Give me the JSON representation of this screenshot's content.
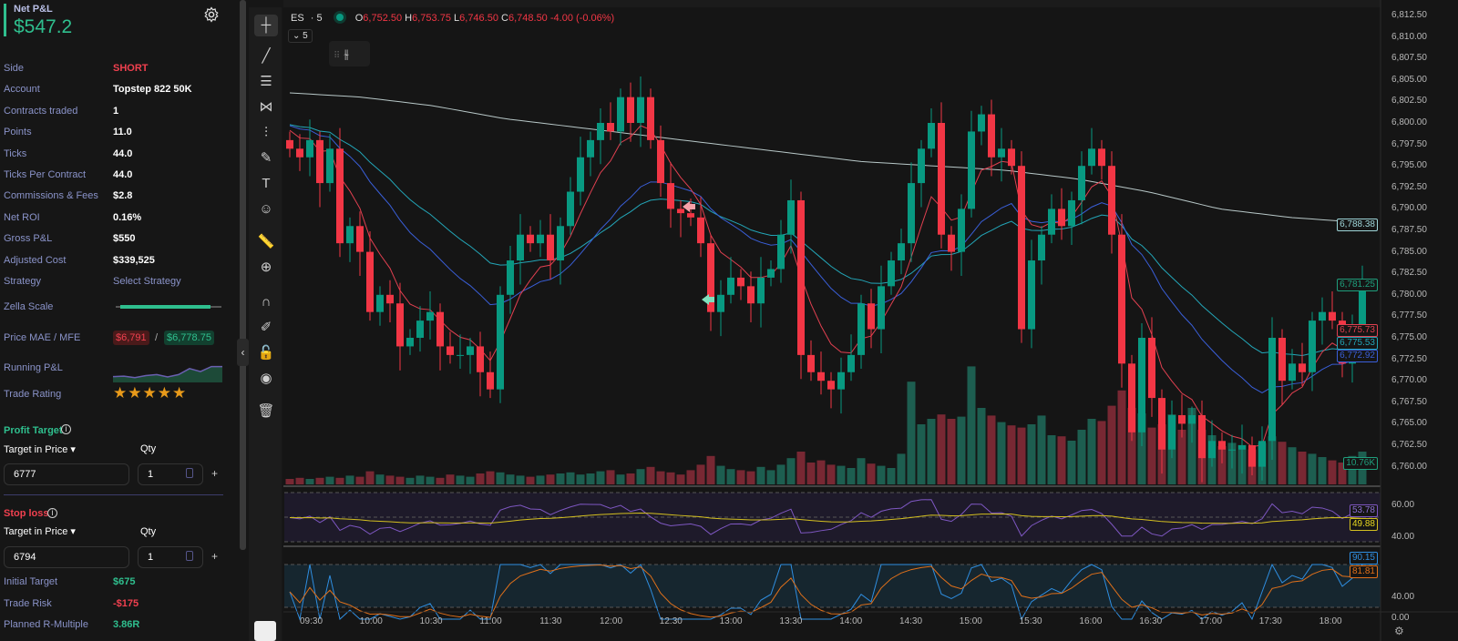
{
  "summary": {
    "net_pnl_label": "Net P&L",
    "net_pnl": "$547.2",
    "rows": [
      {
        "label": "Side",
        "value": "SHORT"
      },
      {
        "label": "Account",
        "value": "Topstep 822 50K"
      },
      {
        "label": "Contracts traded",
        "value": "1"
      },
      {
        "label": "Points",
        "value": "11.0"
      },
      {
        "label": "Ticks",
        "value": "44.0"
      },
      {
        "label": "Ticks Per Contract",
        "value": "44.0"
      },
      {
        "label": "Commissions & Fees",
        "value": "$2.8"
      },
      {
        "label": "Net ROI",
        "value": "0.16%"
      },
      {
        "label": "Gross P&L",
        "value": "$550"
      },
      {
        "label": "Adjusted Cost",
        "value": "$339,525"
      },
      {
        "label": "Strategy",
        "value": "Select Strategy"
      }
    ],
    "zella_label": "Zella Scale",
    "zella_fraction": 0.92,
    "mae_label": "Price MAE / MFE",
    "mae": "$6,791",
    "sep": "/",
    "mfe": "$6,778.75",
    "running_label": "Running P&L",
    "running_values": [
      2,
      2.2,
      1.5,
      2.5,
      3,
      1.8,
      3,
      6,
      4.5,
      7,
      7
    ],
    "rating_label": "Trade Rating",
    "rating": 4.5
  },
  "profit_target": {
    "title": "Profit Target",
    "mode": "Target in Price",
    "qty_label": "Qty",
    "price": "6777",
    "qty": "1",
    "plus": "+"
  },
  "stop_loss": {
    "title": "Stop loss",
    "mode": "Target in Price",
    "qty_label": "Qty",
    "price": "6794",
    "qty": "1",
    "plus": "+"
  },
  "results": [
    {
      "label": "Initial Target",
      "value": "$675",
      "color": "#2fbf8e"
    },
    {
      "label": "Trade Risk",
      "value": "-$175",
      "color": "#f0404f"
    },
    {
      "label": "Planned R-Multiple",
      "value": "3.86R",
      "color": "#2fbf8e"
    }
  ],
  "chart_header": {
    "symbol": "ES",
    "interval": "· 5",
    "o_label": "O",
    "o": "6,752.50",
    "h_label": "H",
    "h": "6,753.75",
    "l_label": "L",
    "l": "6,746.50",
    "c_label": "C",
    "c": "6,748.50",
    "change": "-4.00 (-0.06%)",
    "interval_btn": "5"
  },
  "chart_data": {
    "type": "candlestick",
    "start_time": "09:20",
    "bar_minutes": 5,
    "closes": [
      6797,
      6796,
      6798,
      6793,
      6797,
      6786,
      6788,
      6785,
      6778,
      6780,
      6779,
      6774,
      6775,
      6777,
      6778,
      6774,
      6773,
      6773,
      6774,
      6771,
      6769,
      6780,
      6784,
      6787,
      6786,
      6787,
      6784,
      6788,
      6792,
      6796,
      6798,
      6800,
      6799,
      6803,
      6800,
      6803,
      6798,
      6793,
      6790,
      6789.5,
      6789,
      6786,
      6778,
      6780,
      6782,
      6781,
      6779,
      6782,
      6783,
      6787,
      6791,
      6773,
      6771,
      6770,
      6769,
      6771,
      6773,
      6779,
      6776,
      6781,
      6784,
      6786,
      6793,
      6797,
      6800,
      6787,
      6785,
      6790,
      6799,
      6801,
      6796,
      6797,
      6795,
      6776,
      6784,
      6787,
      6790,
      6788,
      6791,
      6795,
      6797,
      6795,
      6787,
      6772,
      6764,
      6775,
      6768,
      6762,
      6766,
      6765,
      6766,
      6761,
      6763,
      6762,
      6762,
      6762.5,
      6760,
      6763,
      6775,
      6770,
      6772,
      6771,
      6777,
      6778,
      6777,
      6772,
      6776,
      6781
    ],
    "volumes_k": [
      0.5,
      0.6,
      0.5,
      0.6,
      0.7,
      0.6,
      0.8,
      0.7,
      1.2,
      0.9,
      0.8,
      0.7,
      0.6,
      0.8,
      0.7,
      0.6,
      0.9,
      0.8,
      0.7,
      1,
      1.2,
      1.1,
      0.9,
      0.8,
      0.7,
      0.8,
      0.9,
      1,
      1.1,
      0.9,
      1,
      1.2,
      1.3,
      0.9,
      1,
      1.4,
      1.6,
      1.2,
      1.1,
      0.9,
      1.3,
      1.8,
      2.6,
      1.7,
      1.4,
      1.3,
      1.2,
      1.6,
      1.3,
      1.8,
      2.4,
      3,
      2,
      2.2,
      1.8,
      1.7,
      1.5,
      2.4,
      1.9,
      1.7,
      1.5,
      2.8,
      9.4,
      5.5,
      6,
      6.4,
      6,
      6.2,
      10.8,
      7,
      6.3,
      5.7,
      5.4,
      5.2,
      5.5,
      6.3,
      4.5,
      4.4,
      4,
      5,
      6,
      5.8,
      7.2,
      8.6,
      7,
      6.5,
      5.2,
      5.5,
      6.4,
      5,
      7,
      5,
      4.5,
      3.5,
      3.8,
      3.6,
      3.2,
      3.8,
      4.4,
      3.9,
      3.4,
      3,
      2.8,
      2.5,
      2.2,
      2,
      2.6,
      3
    ],
    "ma200": [
      6803.5,
      6803,
      6802,
      6800.5,
      6799.5,
      6798.5,
      6797.5,
      6796.5,
      6795.5,
      6795,
      6794.5,
      6793.5,
      6792,
      6790,
      6789,
      6788.4
    ],
    "y_ticks": [
      "6,812.50",
      "6,810.00",
      "6,807.50",
      "6,805.00",
      "6,802.50",
      "6,800.00",
      "6,797.50",
      "6,795.00",
      "6,792.50",
      "6,790.00",
      "6,787.50",
      "6,785.00",
      "6,782.50",
      "6,780.00",
      "6,777.50",
      "6,775.00",
      "6,772.50",
      "6,770.00",
      "6,767.50",
      "6,765.00",
      "6,762.50",
      "6,760.00"
    ],
    "y_range": [
      6760,
      6812.5
    ],
    "x_ticks": [
      "09:30",
      "10:00",
      "10:30",
      "11:00",
      "11:30",
      "12:00",
      "12:30",
      "13:00",
      "13:30",
      "14:00",
      "14:30",
      "15:00",
      "15:30",
      "16:00",
      "16:30",
      "17:00",
      "17:30",
      "18:00"
    ],
    "price_tags": [
      {
        "value": "6,788.38",
        "color": "#9fd6d9"
      },
      {
        "value": "6,781.25",
        "color": "#1f9e7c"
      },
      {
        "value": "6,775.73",
        "color": "#e04050"
      },
      {
        "value": "6,775.53",
        "color": "#23a6b8"
      },
      {
        "value": "6,772.92",
        "color": "#3a5fd9"
      },
      {
        "value": "10.76K",
        "color": "#1f9e7c"
      }
    ],
    "rsi": {
      "ticks": [
        "60.00",
        "40.00"
      ],
      "value": "53.78",
      "ma": "49.88"
    },
    "stoch": {
      "ticks": [
        "40.00",
        "0.00"
      ],
      "k": "90.15",
      "d": "81.81"
    }
  },
  "colors": {
    "up": "#089981",
    "down": "#f23645",
    "profit": "#2fbf8e",
    "loss": "#f0404f"
  }
}
